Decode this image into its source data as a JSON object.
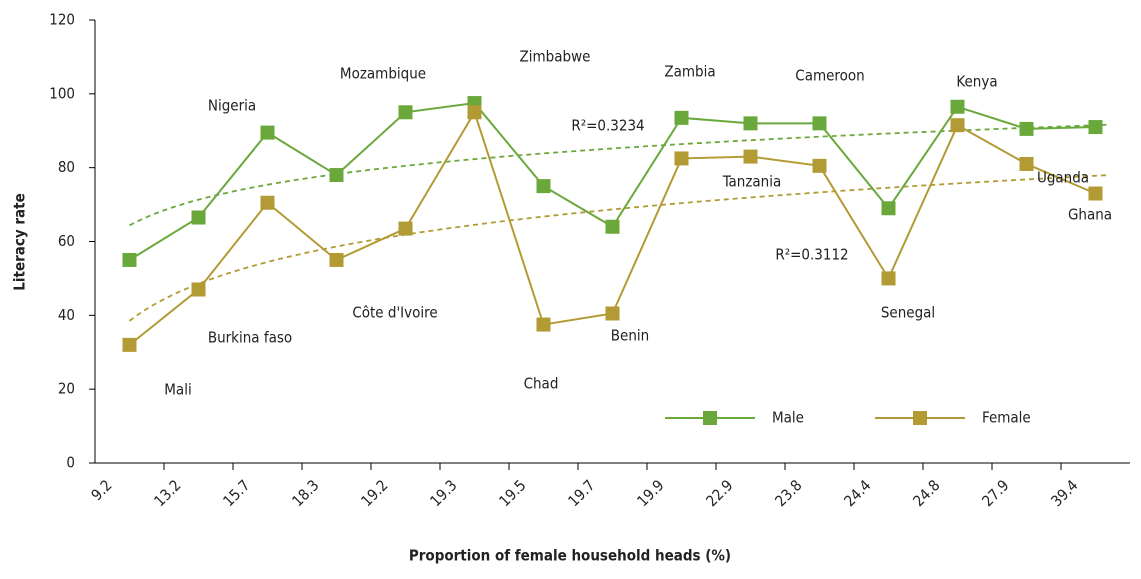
{
  "chart_data": {
    "type": "line",
    "x_label": "Proportion of female household heads (%)",
    "y_label": "Literacy rate",
    "categories": [
      "9.2",
      "13.2",
      "15.7",
      "18.3",
      "19.2",
      "19.3",
      "19.5",
      "19.7",
      "19.9",
      "22.9",
      "23.8",
      "24.4",
      "24.8",
      "27.9",
      "39.4"
    ],
    "point_labels": [
      "Mali",
      "Burkina faso",
      "Nigeria",
      "Côte d'Ivoire",
      "Mozambique",
      "Zimbabwe",
      "Chad",
      "Benin",
      "Zambia",
      "Tanzania",
      "Cameroon",
      "Senegal",
      "Kenya",
      "Uganda",
      "Ghana"
    ],
    "series": [
      {
        "name": "Male",
        "color": "#6aa83c",
        "trend_label": "R²=0.3234",
        "values": [
          55,
          66.5,
          89.5,
          78,
          95,
          97.5,
          75,
          64,
          93.5,
          92,
          92,
          69,
          96.5,
          90.5,
          91
        ]
      },
      {
        "name": "Female",
        "color": "#b29a34",
        "trend_label": "R²=0.3112",
        "values": [
          32,
          47,
          70.5,
          55,
          63.5,
          95,
          37.5,
          40.5,
          82.5,
          83,
          80.5,
          50,
          91.5,
          81,
          73
        ]
      }
    ],
    "trendline": "logarithmic",
    "ylim": [
      0,
      120
    ],
    "yticks": [
      0,
      20,
      40,
      60,
      80,
      100,
      120
    ]
  }
}
